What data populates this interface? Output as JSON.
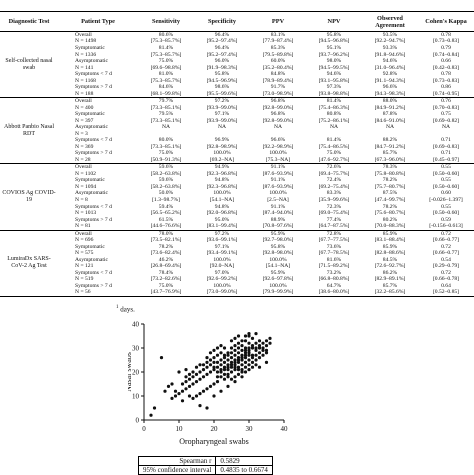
{
  "table": {
    "headers": [
      "Diagnostic Test",
      "Patient Type",
      "Sensitivity",
      "Specificity",
      "PPV",
      "NPV",
      "Observed Agreement",
      "Cohen's Kappa"
    ],
    "groups": [
      {
        "test": "Self-collected nasal swab",
        "rows": [
          [
            "Overall",
            "80.6%",
            "96.4%",
            "83.1%",
            "95.8%",
            "93.5%",
            "0.78"
          ],
          [
            "N = 1498",
            "[75.3–85.7%]",
            "[95.2–97.4%]",
            "[77.9–87.4%]",
            "[94.5–96.8%]",
            "[92.2–94.7%]",
            "[0.73–0.83]"
          ],
          [
            "Symptomatic",
            "81.4%",
            "96.4%",
            "85.3%",
            "95.1%",
            "93.3%",
            "0.79"
          ],
          [
            "N = 1336",
            "[75.3–85.7%]",
            "[95.2–97.4%]",
            "[79.5–89.8%]",
            "[93.7–96.2%]",
            "[91.8–94.6%]",
            "[0.74–0.84]"
          ],
          [
            "Asymptomatic",
            "75.0%",
            "96.0%",
            "60.0%",
            "98.0%",
            "94.6%",
            "0.66"
          ],
          [
            "N = 141",
            "[69.6–98.8%]",
            "[91.9–98.3%]",
            "[35.2–80.4%]",
            "[94.5–99.5%]",
            "[31.0–96.4%]",
            "[0.42–0.83]"
          ],
          [
            "Symptoms < 7 d",
            "81.0%",
            "95.8%",
            "84.8%",
            "94.6%",
            "92.8%",
            "0.78"
          ],
          [
            "N = 1168",
            "[75.3–85.7%]",
            "[94.5–96.9%]",
            "[78.9–89.4%]",
            "[93.1–95.8%]",
            "[91.1–94.3%]",
            "[0.73–0.83]"
          ],
          [
            "Symptoms > 7 d",
            "84.6%",
            "98.6%",
            "91.7%",
            "97.3%",
            "96.6%",
            "0.86"
          ],
          [
            "N = 188",
            "[68.1–99.8%]",
            "[95.5–99.6%]",
            "[73.0–98.9%]",
            "[93.8–98.8%]",
            "[94.3–98.3%]",
            "[0.74–0.95]"
          ]
        ]
      },
      {
        "test": "Abbott Panbio Nasal RDT",
        "rows": [
          [
            "Overall",
            "79.7%",
            "97.2%",
            "96.8%",
            "81.4%",
            "88.0%",
            "0.76"
          ],
          [
            "N = 400",
            "[73.3–85.1%]",
            "[93.9–99.0%]",
            "[92.8–99.0%]",
            "[75.4–86.3%]",
            "[84.9–91.2%]",
            "[0.70–0.83]"
          ],
          [
            "Symptomatic",
            "79.5%",
            "97.1%",
            "96.8%",
            "80.8%",
            "87.8%",
            "0.75"
          ],
          [
            "N = 397",
            "[73.3–85.1%]",
            "[93.9–99.0%]",
            "[92.8–99.0%]",
            "[75.2–86.1%]",
            "[84.6–91.0%]",
            "[0.69–0.82]"
          ],
          [
            "Asymptomatic",
            "NA",
            "NA",
            "NA",
            "NA",
            "NA",
            "NA"
          ],
          [
            "N = 3",
            "",
            "",
            "",
            "",
            "",
            ""
          ],
          [
            "Symptoms < 7 d",
            "80.0%",
            "96.9%",
            "96.6%",
            "81.4%",
            "88.2%",
            "0.71"
          ],
          [
            "N = 369",
            "[73.3–85.1%]",
            "[92.8–98.9%]",
            "[92.2–98.9%]",
            "[75.4–86.5%]",
            "[84.7–91.2%]",
            "[0.69–0.83]"
          ],
          [
            "Symptoms > 7 d",
            "75.0%",
            "100.0%",
            "100.0%",
            "75.0%",
            "85.7%",
            "0.71"
          ],
          [
            "N = 28",
            "[50.9–91.3%]",
            "[69.2–NA]",
            "[75.3–NA]",
            "[47.6–92.7%]",
            "[67.3–96.0%]",
            "[0.45–0.97]"
          ]
        ]
      },
      {
        "test": "COVIOS Ag COVID-19",
        "rows": [
          [
            "Overall",
            "59.6%",
            "94.9%",
            "91.1%",
            "72.6%",
            "78.3%",
            "0.55"
          ],
          [
            "N = 1102",
            "[58.2–63.8%]",
            "[92.3–96.8%]",
            "[87.6–93.9%]",
            "[69.4–75.7%]",
            "[75.8–80.8%]",
            "[0.50–0.60]"
          ],
          [
            "Symptomatic",
            "59.6%",
            "94.8%",
            "91.1%",
            "72.4%",
            "78.2%",
            "0.55"
          ],
          [
            "N = 1094",
            "[58.2–63.8%]",
            "[92.3–96.8%]",
            "[87.6–93.9%]",
            "[69.2–75.4%]",
            "[75.7–80.7%]",
            "[0.50–0.60]"
          ],
          [
            "Asymptomatic",
            "50.0%",
            "100.0%",
            "100.0%",
            "83.3%",
            "87.5%",
            "0.60"
          ],
          [
            "N = 8",
            "[1.3–98.7%]",
            "[54.1–NA]",
            "[2.5–NA]",
            "[35.9–99.6%]",
            "[47.4–99.7%]",
            "[-0.026–1.397]"
          ],
          [
            "Symptoms < 7 d",
            "59.4%",
            "94.8%",
            "91.1%",
            "72.3%",
            "78.2%",
            "0.55"
          ],
          [
            "N = 1013",
            "[56.5–65.2%]",
            "[92.0–96.8%]",
            "[87.4–94.0%]",
            "[69.0–75.4%]",
            "[75.6–80.7%]",
            "[0.50–0.60]"
          ],
          [
            "Symptoms > 7 d",
            "61.5%",
            "95.0%",
            "88.9%",
            "77.4%",
            "80.2%",
            "0.59"
          ],
          [
            "N = 81",
            "[44.6–76.6%]",
            "[83.1–99.4%]",
            "[70.8–97.6%]",
            "[64.7–87.5%]",
            "[70.0–88.3%]",
            "[-0.156–0.613]"
          ]
        ]
      },
      {
        "test": "LumiraDx SARS-CoV-2 Ag Test",
        "rows": [
          [
            "Overall",
            "78.0%",
            "97.2%",
            "95.9%",
            "72.8%",
            "85.9%",
            "0.72"
          ],
          [
            "N = 696",
            "[73.5–82.1%]",
            "[93.6–99.1%]",
            "[92.7–98.0%]",
            "[67.7–77.5%]",
            "[83.1–88.4%]",
            "[0.66–0.77]"
          ],
          [
            "Symptomatic",
            "78.2%",
            "97.1%",
            "95.8%",
            "73.6%",
            "85.9%",
            "0.72"
          ],
          [
            "N = 575",
            "[73.6–82.4%]",
            "[93.4–99.1%]",
            "[92.8–98.0%]",
            "[67.7–78.5%]",
            "[82.8–88.6%]",
            "[0.66–0.77]"
          ],
          [
            "Asymptomatic",
            "46.2%",
            "100.0%",
            "100.0%",
            "81.6%",
            "84.5%",
            "0.54"
          ],
          [
            "N = 121",
            "[26.8–69.4%]",
            "[92.0–NA]",
            "[54.1–NA]",
            "[71.5–89.2%]",
            "[72.6–92.7%]",
            "[0.29–0.79]"
          ],
          [
            "Symptoms < 7 d",
            "78.4%",
            "97.0%",
            "95.9%",
            "73.2%",
            "86.2%",
            "0.72"
          ],
          [
            "N = 519",
            "[73.2–82.6%]",
            "[92.6–99.2%]",
            "[92.6–97.8%]",
            "[66.8–80.8%]",
            "[82.9–89.1%]",
            "[0.66–0.78]"
          ],
          [
            "Symptoms > 7 d",
            "75.0%",
            "100.0%",
            "100.0%",
            "64.7%",
            "85.7%",
            "0.64"
          ],
          [
            "N = 56",
            "[43.7–76.9%]",
            "[73.0–99.0%]",
            "[79.9–99.9%]",
            "[38.6–80.0%]",
            "[32.2–85.6%]",
            "[0.52–0.85]"
          ]
        ]
      }
    ]
  },
  "footnote": {
    "marker": "1",
    "text": "days."
  },
  "chart_data": {
    "type": "scatter",
    "xlabel": "Oropharyngeal swabs",
    "ylabel": "Nasal swabs",
    "xlim": [
      0,
      40
    ],
    "ylim": [
      0,
      40
    ],
    "xticks": [
      "0",
      "10",
      "20",
      "30",
      "40"
    ],
    "yticks": [
      "0",
      "10",
      "20",
      "30",
      "40"
    ],
    "points": [
      [
        22,
        20
      ],
      [
        20,
        22
      ],
      [
        21,
        18
      ],
      [
        23,
        21
      ],
      [
        24,
        22
      ],
      [
        25,
        24
      ],
      [
        26,
        23
      ],
      [
        27,
        25
      ],
      [
        28,
        26
      ],
      [
        29,
        27
      ],
      [
        30,
        28
      ],
      [
        31,
        27
      ],
      [
        32,
        30
      ],
      [
        33,
        31
      ],
      [
        34,
        32
      ],
      [
        35,
        33
      ],
      [
        36,
        34
      ],
      [
        30,
        32
      ],
      [
        29,
        30
      ],
      [
        28,
        29
      ],
      [
        27,
        28
      ],
      [
        26,
        27
      ],
      [
        25,
        26
      ],
      [
        24,
        25
      ],
      [
        23,
        24
      ],
      [
        22,
        23
      ],
      [
        21,
        22
      ],
      [
        20,
        21
      ],
      [
        19,
        20
      ],
      [
        18,
        19
      ],
      [
        17,
        18
      ],
      [
        16,
        17
      ],
      [
        15,
        16
      ],
      [
        14,
        15
      ],
      [
        13,
        14
      ],
      [
        12,
        13
      ],
      [
        11,
        12
      ],
      [
        10,
        11
      ],
      [
        9,
        10
      ],
      [
        8,
        9
      ],
      [
        24,
        19
      ],
      [
        25,
        20
      ],
      [
        26,
        21
      ],
      [
        27,
        22
      ],
      [
        28,
        23
      ],
      [
        29,
        24
      ],
      [
        30,
        25
      ],
      [
        31,
        26
      ],
      [
        32,
        27
      ],
      [
        33,
        28
      ],
      [
        23,
        26
      ],
      [
        24,
        27
      ],
      [
        25,
        28
      ],
      [
        26,
        29
      ],
      [
        27,
        30
      ],
      [
        28,
        31
      ],
      [
        29,
        33
      ],
      [
        30,
        35
      ],
      [
        31,
        34
      ],
      [
        32,
        36
      ],
      [
        22,
        18
      ],
      [
        23,
        17
      ],
      [
        21,
        16
      ],
      [
        20,
        15
      ],
      [
        19,
        14
      ],
      [
        18,
        13
      ],
      [
        17,
        12
      ],
      [
        16,
        11
      ],
      [
        15,
        10
      ],
      [
        14,
        9
      ],
      [
        20,
        24
      ],
      [
        19,
        23
      ],
      [
        18,
        22
      ],
      [
        17,
        21
      ],
      [
        16,
        20
      ],
      [
        15,
        19
      ],
      [
        14,
        18
      ],
      [
        13,
        17
      ],
      [
        12,
        16
      ],
      [
        11,
        15
      ],
      [
        26,
        22
      ],
      [
        27,
        21
      ],
      [
        28,
        20
      ],
      [
        29,
        22
      ],
      [
        30,
        23
      ],
      [
        31,
        24
      ],
      [
        32,
        25
      ],
      [
        33,
        26
      ],
      [
        34,
        27
      ],
      [
        35,
        29
      ],
      [
        24,
        23
      ],
      [
        25,
        22
      ],
      [
        26,
        25
      ],
      [
        27,
        24
      ],
      [
        28,
        27
      ],
      [
        29,
        26
      ],
      [
        30,
        29
      ],
      [
        31,
        30
      ],
      [
        32,
        29
      ],
      [
        33,
        30
      ],
      [
        21,
        20
      ],
      [
        22,
        21
      ],
      [
        23,
        22
      ],
      [
        24,
        21
      ],
      [
        25,
        23
      ],
      [
        26,
        24
      ],
      [
        27,
        26
      ],
      [
        28,
        25
      ],
      [
        29,
        28
      ],
      [
        30,
        27
      ],
      [
        21,
        24
      ],
      [
        22,
        25
      ],
      [
        23,
        27
      ],
      [
        24,
        28
      ],
      [
        25,
        30
      ],
      [
        26,
        31
      ],
      [
        27,
        32
      ],
      [
        28,
        33
      ],
      [
        29,
        35
      ],
      [
        30,
        36
      ],
      [
        34,
        30
      ],
      [
        35,
        31
      ],
      [
        36,
        32
      ],
      [
        35,
        28
      ],
      [
        34,
        29
      ],
      [
        33,
        33
      ],
      [
        32,
        32
      ],
      [
        31,
        31
      ],
      [
        30,
        30
      ],
      [
        29,
        29
      ],
      [
        10,
        20
      ],
      [
        12,
        18
      ],
      [
        8,
        15
      ],
      [
        9,
        12
      ],
      [
        11,
        8
      ],
      [
        13,
        10
      ],
      [
        7,
        14
      ],
      [
        6,
        12
      ],
      [
        16,
        6
      ],
      [
        5,
        26
      ],
      [
        2,
        2
      ],
      [
        3,
        5
      ],
      [
        18,
        5
      ],
      [
        20,
        10
      ],
      [
        22,
        12
      ],
      [
        24,
        14
      ],
      [
        26,
        16
      ],
      [
        28,
        18
      ],
      [
        33,
        22
      ],
      [
        35,
        24
      ],
      [
        25,
        33
      ],
      [
        26,
        34
      ],
      [
        27,
        35
      ],
      [
        23,
        30
      ],
      [
        22,
        28
      ],
      [
        21,
        27
      ],
      [
        20,
        26
      ],
      [
        19,
        25
      ],
      [
        18,
        24
      ],
      [
        17,
        23
      ],
      [
        15,
        22
      ],
      [
        14,
        20
      ],
      [
        13,
        19
      ],
      [
        12,
        21
      ],
      [
        16,
        23
      ],
      [
        18,
        26
      ],
      [
        19,
        28
      ],
      [
        20,
        29
      ],
      [
        21,
        30
      ],
      [
        22,
        31
      ],
      [
        23,
        19
      ],
      [
        24,
        18
      ],
      [
        25,
        17
      ],
      [
        26,
        18
      ],
      [
        27,
        19
      ],
      [
        28,
        21
      ],
      [
        29,
        20
      ],
      [
        30,
        21
      ],
      [
        31,
        22
      ],
      [
        32,
        23
      ]
    ]
  },
  "stats": {
    "rows": [
      {
        "label": "Spearman r",
        "value": "0.5829"
      },
      {
        "label": "95% confidence interval",
        "value": "0.4835 to 0.6674"
      }
    ]
  }
}
